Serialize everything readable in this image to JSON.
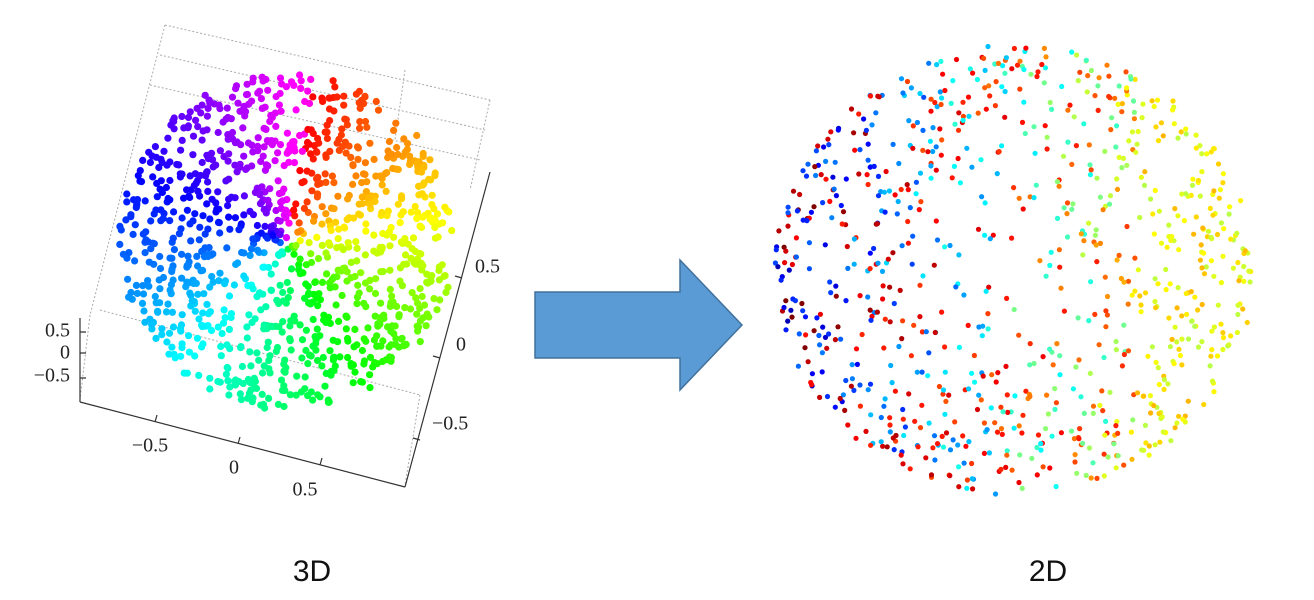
{
  "panels": [
    {
      "label": "3D",
      "axes": {
        "z_ticks": [
          "0.5",
          "0",
          "−0.5"
        ],
        "x_ticks": [
          "−0.5",
          "0",
          "0.5"
        ],
        "y_ticks": [
          "0.5",
          "0",
          "−0.5"
        ]
      }
    },
    {
      "label": "2D"
    }
  ]
}
